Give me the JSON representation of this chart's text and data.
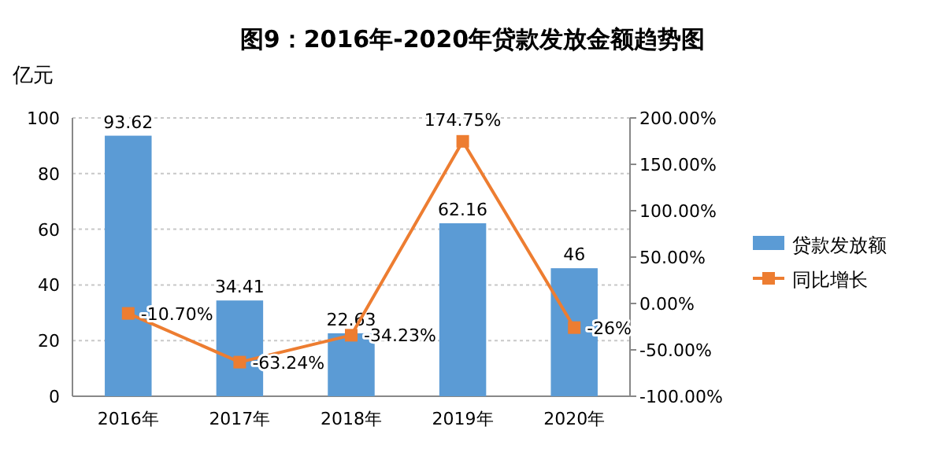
{
  "chart_data": {
    "type": "bar",
    "title": "图9：2016年-2020年贷款发放金额趋势图",
    "ylabel": "亿元",
    "categories": [
      "2016年",
      "2017年",
      "2018年",
      "2019年",
      "2020年"
    ],
    "series": [
      {
        "name": "贷款发放额",
        "color": "#5b9bd5",
        "values": [
          93.62,
          34.41,
          22.63,
          62.16,
          46
        ],
        "value_labels": [
          "93.62",
          "34.41",
          "22.63",
          "62.16",
          "46"
        ]
      },
      {
        "name": "同比增长",
        "type": "line",
        "axis": "y2",
        "color": "#ed7d31",
        "marker": "square",
        "values": [
          -10.7,
          -63.24,
          -34.23,
          174.75,
          -26
        ],
        "value_labels": [
          "-10.70%",
          "-63.24%",
          "-34.23%",
          "174.75%",
          "-26%"
        ]
      }
    ],
    "ylim": [
      0,
      100
    ],
    "yticks": [
      0,
      20,
      40,
      60,
      80,
      100
    ],
    "y2lim": [
      -100,
      200
    ],
    "y2ticks": [
      {
        "value": -100,
        "label": "-100.00%"
      },
      {
        "value": -50,
        "label": "-50.00%"
      },
      {
        "value": 0,
        "label": "0.00%"
      },
      {
        "value": 50,
        "label": "50.00%"
      },
      {
        "value": 100,
        "label": "100.00%"
      },
      {
        "value": 150,
        "label": "150.00%"
      },
      {
        "value": 200,
        "label": "200.00%"
      }
    ],
    "grid": "y",
    "legend": "right"
  }
}
